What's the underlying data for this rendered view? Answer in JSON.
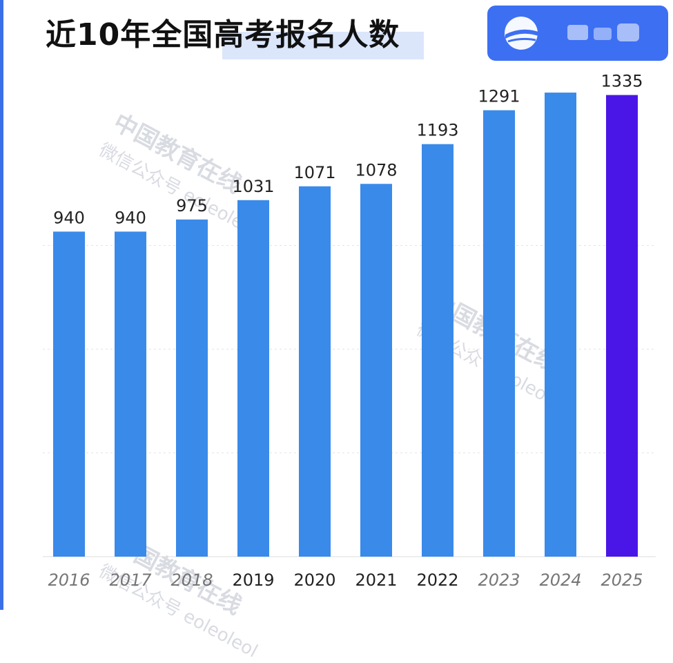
{
  "header": {
    "title": "近10年全国高考报名人数"
  },
  "logo": {
    "icon": "eol-logo-icon",
    "color": "#3d6ff2"
  },
  "watermark": {
    "line1": "中国教育在线",
    "line2": "微信公众号 eoleoleol"
  },
  "chart_data": {
    "type": "bar",
    "title": "近10年全国高考报名人数",
    "xlabel": "",
    "ylabel": "",
    "categories": [
      "2016",
      "2017",
      "2018",
      "2019",
      "2020",
      "2021",
      "2022",
      "2023",
      "2024",
      "2025"
    ],
    "values": [
      940,
      940,
      975,
      1031,
      1071,
      1078,
      1193,
      1291,
      1342,
      1335
    ],
    "data_labels": [
      "940",
      "940",
      "975",
      "1031",
      "1071",
      "1078",
      "1193",
      "1291",
      "",
      "1335"
    ],
    "ylim": [
      0,
      1450
    ],
    "grid": true,
    "bar_color": "#3a8ae9",
    "highlight_color": "#4a16e8",
    "highlight_index": 9,
    "legend": "none"
  }
}
